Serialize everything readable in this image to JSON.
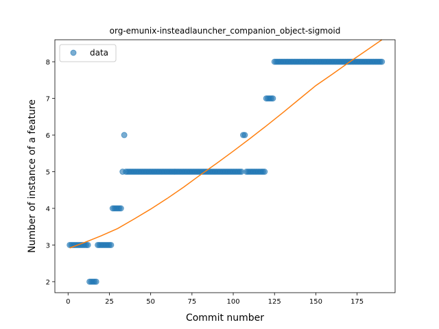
{
  "chart_data": {
    "type": "scatter",
    "title": "org-emunix-insteadlauncher_companion_object-sigmoid",
    "xlabel": "Commit number",
    "ylabel": "Number of instance of a feature",
    "xlim": [
      -8,
      198
    ],
    "ylim": [
      1.7,
      8.6
    ],
    "xticks": [
      0,
      25,
      50,
      75,
      100,
      125,
      150,
      175
    ],
    "yticks": [
      2,
      3,
      4,
      5,
      6,
      7,
      8
    ],
    "legend": {
      "position": "top-left",
      "entries": [
        "data"
      ]
    },
    "grid": false,
    "colors": {
      "data": "#1f77b4",
      "fit": "#ff7f0e"
    },
    "series": [
      {
        "name": "data",
        "kind": "scatter",
        "segments": [
          {
            "x_from": 1,
            "x_to": 12,
            "y": 3
          },
          {
            "x_from": 13,
            "x_to": 17,
            "y": 2
          },
          {
            "x_from": 18,
            "x_to": 26,
            "y": 3
          },
          {
            "x_from": 27,
            "x_to": 32,
            "y": 4
          },
          {
            "x_from": 33,
            "x_to": 33,
            "y": 5
          },
          {
            "x_from": 34,
            "x_to": 34,
            "y": 6
          },
          {
            "x_from": 35,
            "x_to": 105,
            "y": 5
          },
          {
            "x_from": 106,
            "x_to": 107,
            "y": 6
          },
          {
            "x_from": 108,
            "x_to": 119,
            "y": 5
          },
          {
            "x_from": 120,
            "x_to": 124,
            "y": 7
          },
          {
            "x_from": 125,
            "x_to": 190,
            "y": 8
          }
        ]
      },
      {
        "name": "",
        "kind": "line",
        "x": [
          1,
          10,
          20,
          30,
          40,
          50,
          60,
          70,
          80,
          90,
          100,
          110,
          120,
          130,
          140,
          150,
          160,
          170,
          180,
          190
        ],
        "y": [
          2.92,
          3.07,
          3.25,
          3.45,
          3.71,
          3.98,
          4.27,
          4.58,
          4.91,
          5.23,
          5.56,
          5.9,
          6.25,
          6.61,
          6.98,
          7.35,
          7.66,
          7.98,
          8.29,
          8.6
        ]
      }
    ]
  }
}
